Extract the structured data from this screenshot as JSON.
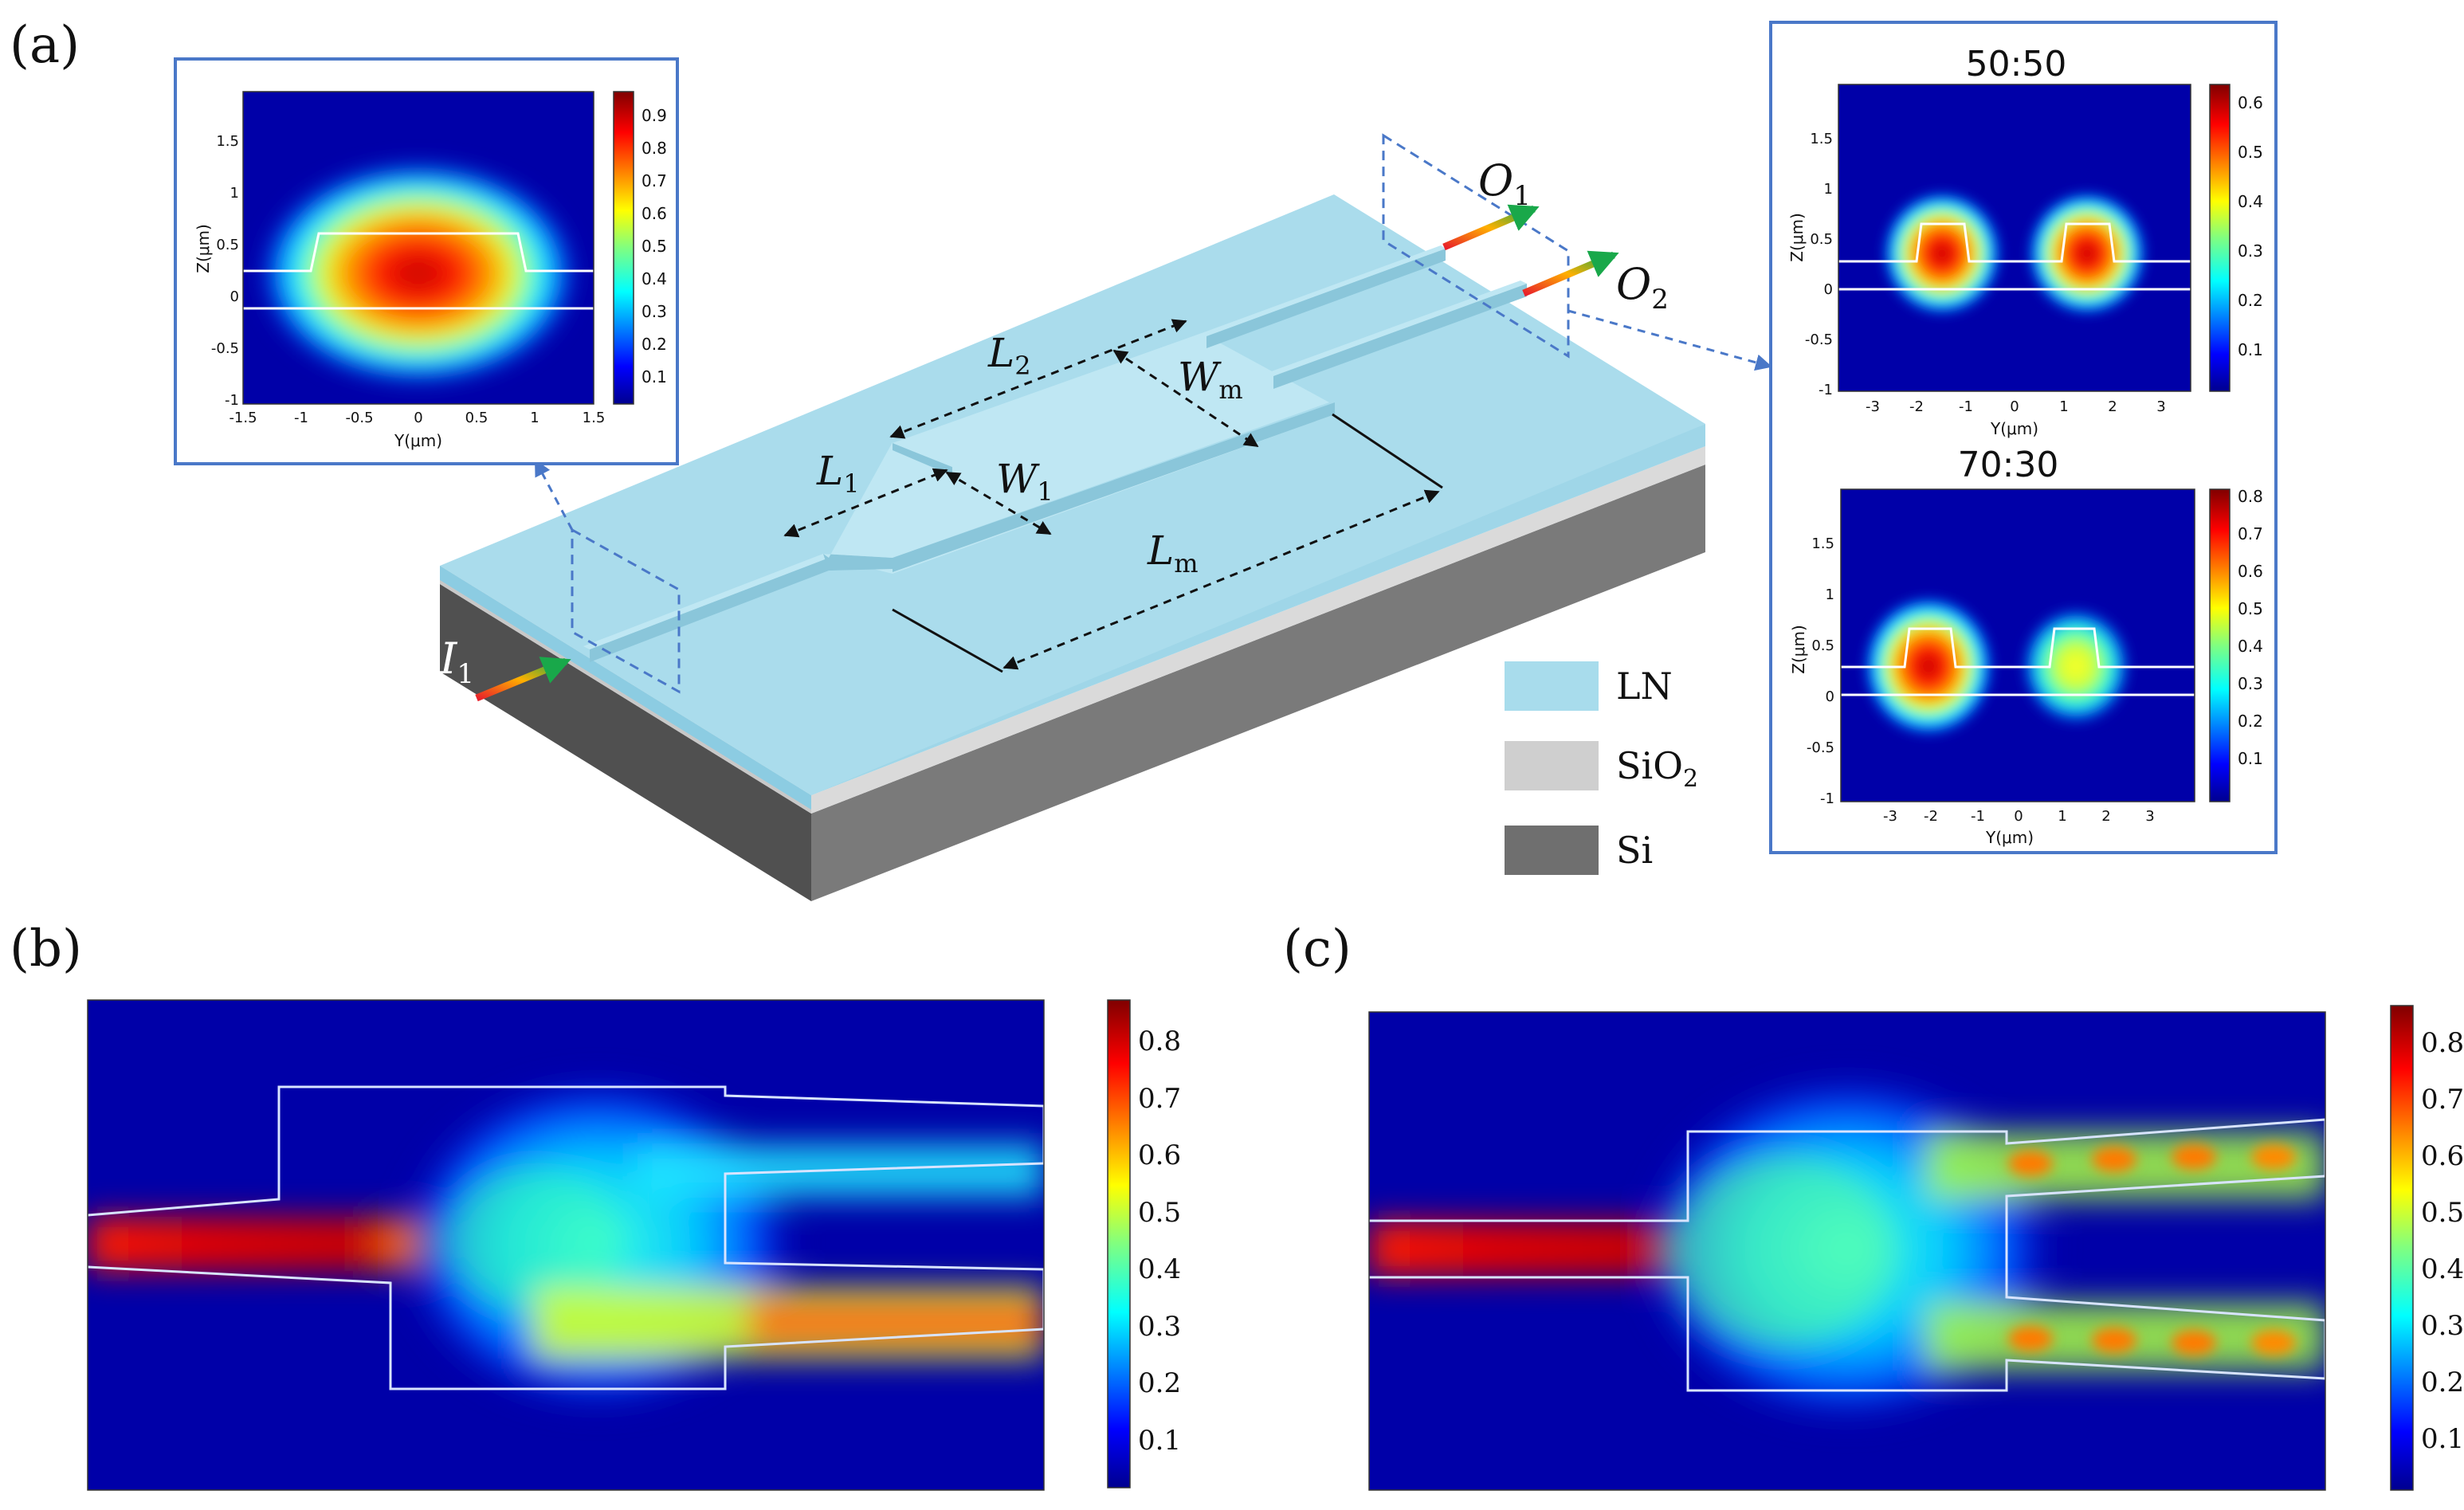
{
  "figure": {
    "panel_labels": {
      "a": "(a)",
      "b": "(b)",
      "c": "(c)"
    },
    "dimension_labels": {
      "L1": {
        "main": "L",
        "sub": "1"
      },
      "L2": {
        "main": "L",
        "sub": "2"
      },
      "W1": {
        "main": "W",
        "sub": "1"
      },
      "Wm": {
        "main": "W",
        "sub": "m"
      },
      "Lm": {
        "main": "L",
        "sub": "m"
      },
      "I1": {
        "main": "I",
        "sub": "1"
      },
      "O1": {
        "main": "O",
        "sub": "1"
      },
      "O2": {
        "main": "O",
        "sub": "2"
      }
    },
    "legend": [
      {
        "label": "LN",
        "sub": "",
        "color": "#a8dcec"
      },
      {
        "label": "SiO",
        "sub": "2",
        "color": "#cfcfcf"
      },
      {
        "label": "Si",
        "sub": "",
        "color": "#6f6f6f"
      }
    ],
    "input_mode": {
      "xlabel": "Y(μm)",
      "ylabel": "Z(μm)",
      "xticks": [
        "-1.5",
        "-1",
        "-0.5",
        "0",
        "0.5",
        "1",
        "1.5"
      ],
      "yticks": [
        "1.5",
        "1",
        "0.5",
        "0",
        "-0.5",
        "-1"
      ],
      "colorbar_ticks": [
        "0.9",
        "0.8",
        "0.7",
        "0.6",
        "0.5",
        "0.4",
        "0.3",
        "0.2",
        "0.1"
      ]
    },
    "output_modes": [
      {
        "title": "50:50",
        "xlabel": "Y(μm)",
        "ylabel": "Z(μm)",
        "xticks": [
          "-3",
          "-2",
          "-1",
          "0",
          "1",
          "2",
          "3"
        ],
        "yticks": [
          "1.5",
          "1",
          "0.5",
          "0",
          "-0.5",
          "-1"
        ],
        "colorbar_ticks": [
          "0.6",
          "0.5",
          "0.4",
          "0.3",
          "0.2",
          "0.1"
        ]
      },
      {
        "title": "70:30",
        "xlabel": "Y(μm)",
        "ylabel": "Z(μm)",
        "xticks": [
          "-3",
          "-2",
          "-1",
          "0",
          "1",
          "2",
          "3"
        ],
        "yticks": [
          "1.5",
          "1",
          "0.5",
          "0",
          "-0.5",
          "-1"
        ],
        "colorbar_ticks": [
          "0.8",
          "0.7",
          "0.6",
          "0.5",
          "0.4",
          "0.3",
          "0.2",
          "0.1"
        ]
      }
    ],
    "propagation_b": {
      "colorbar_ticks": [
        "0.8",
        "0.7",
        "0.6",
        "0.5",
        "0.4",
        "0.3",
        "0.2",
        "0.1"
      ]
    },
    "propagation_c": {
      "colorbar_ticks": [
        "0.8",
        "0.7",
        "0.6",
        "0.5",
        "0.4",
        "0.3",
        "0.2",
        "0.1"
      ]
    }
  }
}
